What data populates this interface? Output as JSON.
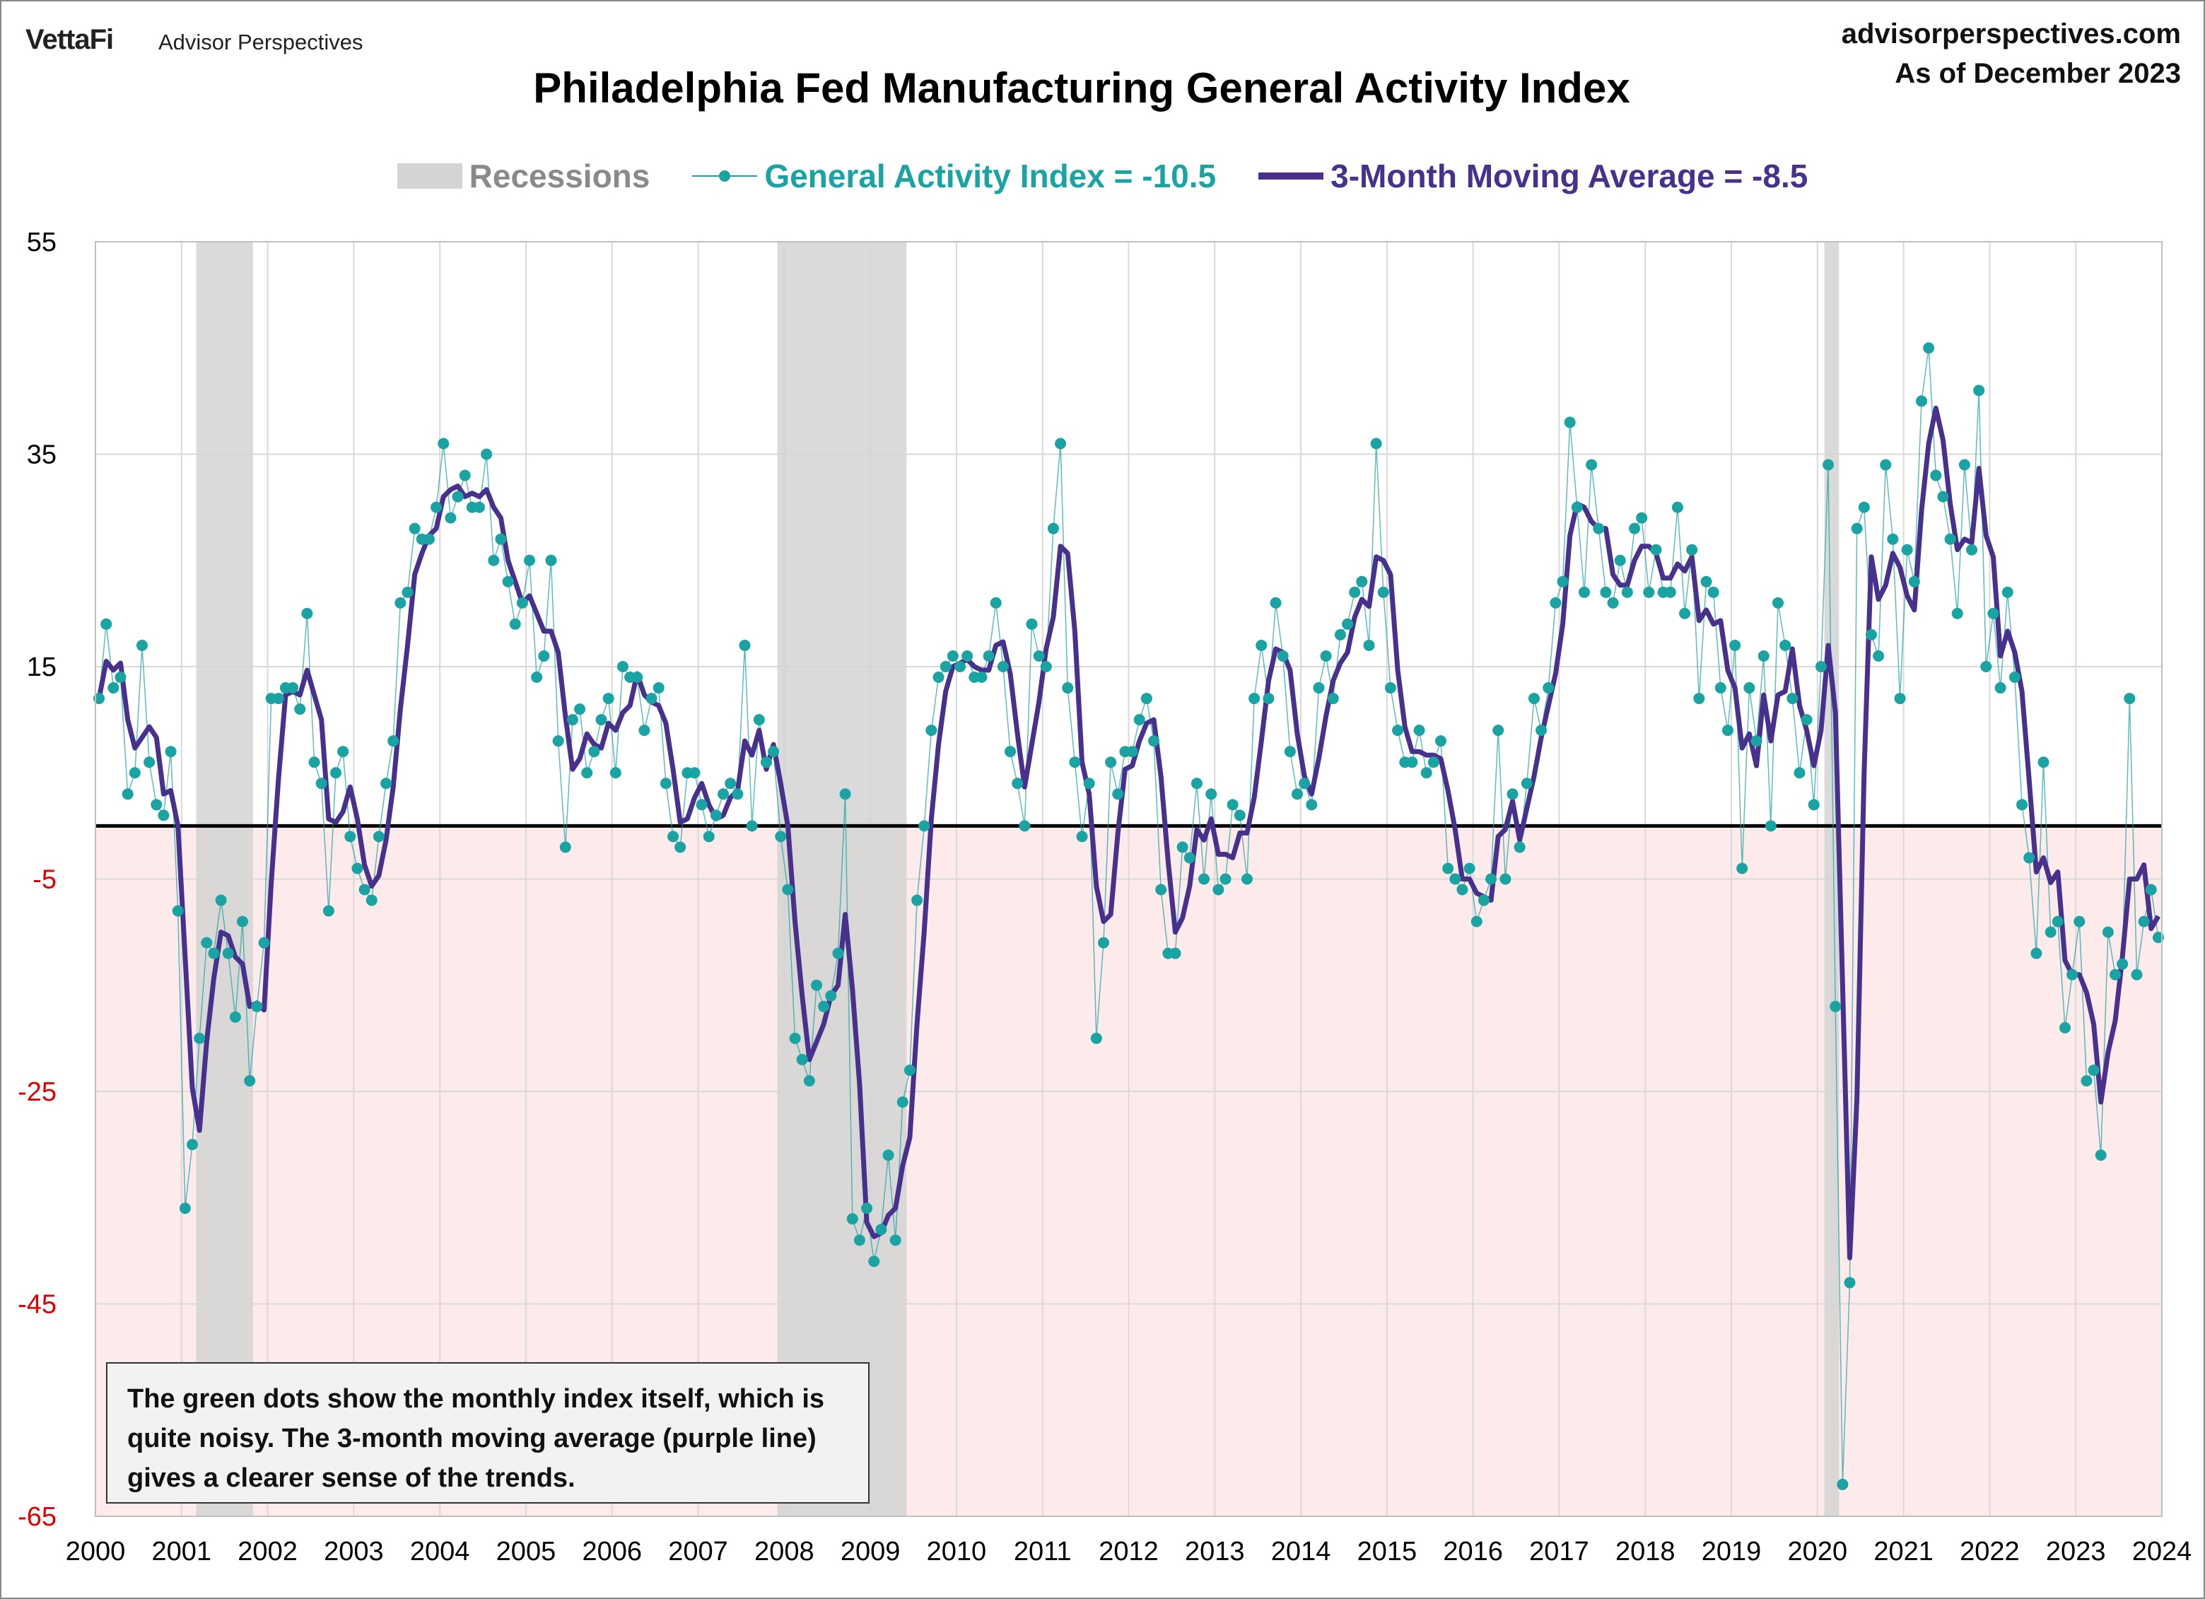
{
  "header": {
    "logo": "VettaFi",
    "logo_sub": "Advisor Perspectives",
    "site": "advisorperspectives.com",
    "as_of": "As of December 2023"
  },
  "note": "The green dots show the monthly  index itself, which is quite noisy. The 3-month moving average (purple line) gives a clearer sense of the trends.",
  "colors": {
    "dots": "#1aa3a3",
    "ma": "#47318c",
    "recession": "#d4d4d4",
    "negative_fill": "#fdeaea",
    "negative_tick": "#e00000"
  },
  "chart_data": {
    "type": "line",
    "title": "Philadelphia Fed Manufacturing General Activity Index",
    "legend": {
      "position": "top",
      "recessions": "Recessions",
      "index": "General Activity Index = -10.5",
      "ma": "3-Month Moving Average = -8.5"
    },
    "ylim": [
      -65,
      55
    ],
    "yticks": [
      55,
      35,
      15,
      -5,
      -25,
      -45,
      -65
    ],
    "xlim": [
      2000,
      2024
    ],
    "xticks": [
      "2000",
      "2001",
      "2002",
      "2003",
      "2004",
      "2005",
      "2006",
      "2007",
      "2008",
      "2009",
      "2010",
      "2011",
      "2012",
      "2013",
      "2014",
      "2015",
      "2016",
      "2017",
      "2018",
      "2019",
      "2020",
      "2021",
      "2022",
      "2023",
      "2024"
    ],
    "grid": true,
    "recessions": [
      [
        2001.17,
        2001.83
      ],
      [
        2007.92,
        2009.42
      ],
      [
        2020.08,
        2020.25
      ]
    ],
    "start": "2000-01",
    "frequency": "monthly",
    "series": [
      {
        "name": "General Activity Index",
        "style": "dots",
        "values": [
          12,
          19,
          13,
          14,
          3,
          5,
          17,
          6,
          2,
          1,
          7,
          -8,
          -36,
          -30,
          -20,
          -11,
          -12,
          -7,
          -12,
          -18,
          -9,
          -24,
          -17,
          -11,
          12,
          12,
          13,
          13,
          11,
          20,
          6,
          4,
          -8,
          5,
          7,
          -1,
          -4,
          -6,
          -7,
          -1,
          4,
          8,
          21,
          22,
          28,
          27,
          27,
          30,
          36,
          29,
          31,
          33,
          30,
          30,
          35,
          25,
          27,
          23,
          19,
          21,
          25,
          14,
          16,
          25,
          8,
          -2,
          10,
          11,
          5,
          7,
          10,
          12,
          5,
          15,
          14,
          14,
          9,
          12,
          13,
          4,
          -1,
          -2,
          5,
          5,
          2,
          -1,
          1,
          3,
          4,
          3,
          17,
          0,
          10,
          6,
          7,
          -1,
          -6,
          -20,
          -22,
          -24,
          -15,
          -17,
          -16,
          -12,
          3,
          -37,
          -39,
          -36,
          -41,
          -38,
          -31,
          -39,
          -26,
          -23,
          -7,
          0,
          9,
          14,
          15,
          16,
          15,
          16,
          14,
          14,
          16,
          21,
          15,
          7,
          4,
          0,
          19,
          16,
          15,
          28,
          36,
          13,
          6,
          -1,
          4,
          -20,
          -11,
          6,
          3,
          7,
          7,
          10,
          12,
          8,
          -6,
          -12,
          -12,
          -2,
          -3,
          4,
          -5,
          3,
          -6,
          -5,
          2,
          1,
          -5,
          12,
          17,
          12,
          21,
          16,
          7,
          3,
          4,
          2,
          13,
          16,
          12,
          18,
          19,
          22,
          23,
          17,
          36,
          22,
          13,
          9,
          6,
          6,
          9,
          5,
          6,
          8,
          -4,
          -5,
          -6,
          -4,
          -9,
          -7,
          -5,
          9,
          -5,
          3,
          -2,
          4,
          12,
          9,
          13,
          21,
          23,
          38,
          30,
          22,
          34,
          28,
          22,
          21,
          25,
          22,
          28,
          29,
          22,
          26,
          22,
          22,
          30,
          20,
          26,
          12,
          23,
          22,
          13,
          9,
          17,
          -4,
          13,
          8,
          16,
          0,
          21,
          17,
          12,
          5,
          10,
          2,
          15,
          34,
          -17,
          -62,
          -43,
          28,
          30,
          18,
          16,
          34,
          27,
          12,
          26,
          23,
          40,
          45,
          33,
          31,
          27,
          20,
          34,
          26,
          41,
          15,
          20,
          13,
          22,
          14,
          2,
          -3,
          -12,
          6,
          -10,
          -9,
          -19,
          -14,
          -9,
          -24,
          -23,
          -31,
          -10,
          -14,
          -13,
          12,
          -14,
          -9,
          -6,
          -10.5
        ]
      },
      {
        "name": "3-Month Moving Average",
        "style": "line",
        "derived_from": "General Activity Index",
        "last_value": -8.5
      }
    ]
  }
}
